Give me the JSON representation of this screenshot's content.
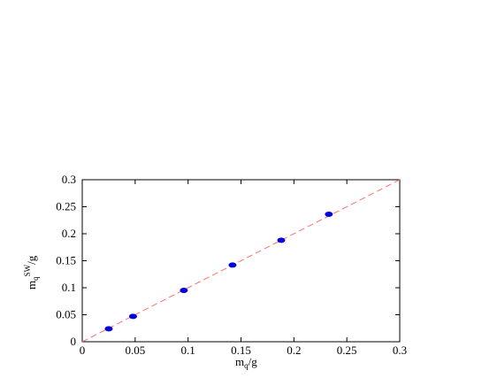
{
  "chart_data": {
    "type": "scatter",
    "xlabel": {
      "main": "m",
      "sub": "q",
      "rest": "/g"
    },
    "ylabel": {
      "main": "m",
      "sub": "q",
      "sup": "SW",
      "rest": "/g"
    },
    "xlim": [
      0,
      0.3
    ],
    "ylim": [
      0,
      0.3
    ],
    "xticks": [
      0,
      0.05,
      0.1,
      0.15,
      0.2,
      0.25,
      0.3
    ],
    "xtick_labels": [
      "0",
      "0.05",
      "0.1",
      "0.15",
      "0.2",
      "0.25",
      "0.3"
    ],
    "yticks": [
      0,
      0.05,
      0.1,
      0.15,
      0.2,
      0.25,
      0.3
    ],
    "ytick_labels": [
      "0",
      "0.05",
      "0.1",
      "0.15",
      "0.2",
      "0.25",
      "0.3"
    ],
    "grid": false,
    "series": [
      {
        "kind": "points",
        "color": "#0000dd",
        "x": [
          0.025,
          0.048,
          0.096,
          0.142,
          0.188,
          0.233
        ],
        "y": [
          0.024,
          0.047,
          0.095,
          0.142,
          0.188,
          0.236
        ]
      },
      {
        "kind": "dashed-line",
        "color": "#ff6f6f",
        "x": [
          0,
          0.3
        ],
        "y": [
          0,
          0.3
        ]
      }
    ]
  }
}
